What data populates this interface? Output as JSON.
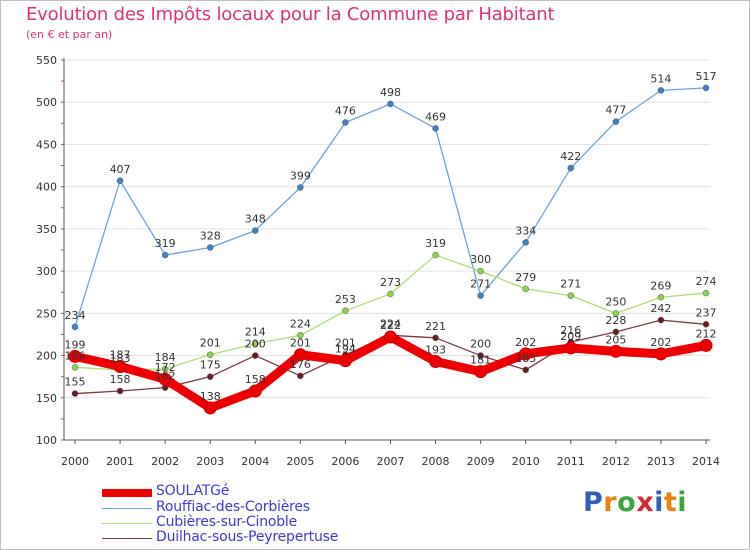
{
  "title": "Evolution des Impôts locaux pour la Commune par Habitant",
  "subtitle": "(en € et par an)",
  "logo": {
    "text": "Proxiti",
    "letter_colors": [
      "#2f5fb8",
      "#e8820c",
      "#3ea63e",
      "#d12b2b",
      "#2f5fb8",
      "#e8820c",
      "#3ea63e"
    ]
  },
  "chart_data": {
    "type": "line",
    "title": "Evolution des Impôts locaux pour la Commune par Habitant",
    "subtitle": "(en € et par an)",
    "xlabel": "",
    "ylabel": "",
    "ylim": [
      100,
      550
    ],
    "yticks": [
      100,
      150,
      200,
      250,
      300,
      350,
      400,
      450,
      500,
      550
    ],
    "grid": "horizontal",
    "legend_position": "bottom-left",
    "categories": [
      "2000",
      "2001",
      "2002",
      "2003",
      "2004",
      "2005",
      "2006",
      "2007",
      "2008",
      "2009",
      "2010",
      "2011",
      "2012",
      "2013",
      "2014"
    ],
    "series": [
      {
        "name": "SOULATGé",
        "color": "#ee0000",
        "line_color": "#ee0000",
        "values": [
          199,
          187,
          172,
          138,
          158,
          201,
          194,
          222,
          193,
          181,
          202,
          209,
          205,
          202,
          212
        ]
      },
      {
        "name": "Rouffiac-des-Corbières",
        "color": "#3a82c9",
        "line_color": "#6aa3dc",
        "values": [
          234,
          407,
          319,
          328,
          348,
          399,
          476,
          498,
          469,
          271,
          334,
          422,
          477,
          514,
          517
        ]
      },
      {
        "name": "Cubières-sur-Cinoble",
        "color": "#8ed34e",
        "line_color": "#a9e070",
        "values": [
          186,
          183,
          184,
          201,
          214,
          224,
          253,
          273,
          319,
          300,
          279,
          271,
          250,
          269,
          274
        ]
      },
      {
        "name": "Duilhac-sous-Peyrepertuse",
        "color": "#6b1c22",
        "line_color": "#7a3a40",
        "values": [
          155,
          158,
          162,
          175,
          200,
          176,
          201,
          224,
          221,
          200,
          183,
          216,
          228,
          242,
          237
        ]
      }
    ]
  }
}
